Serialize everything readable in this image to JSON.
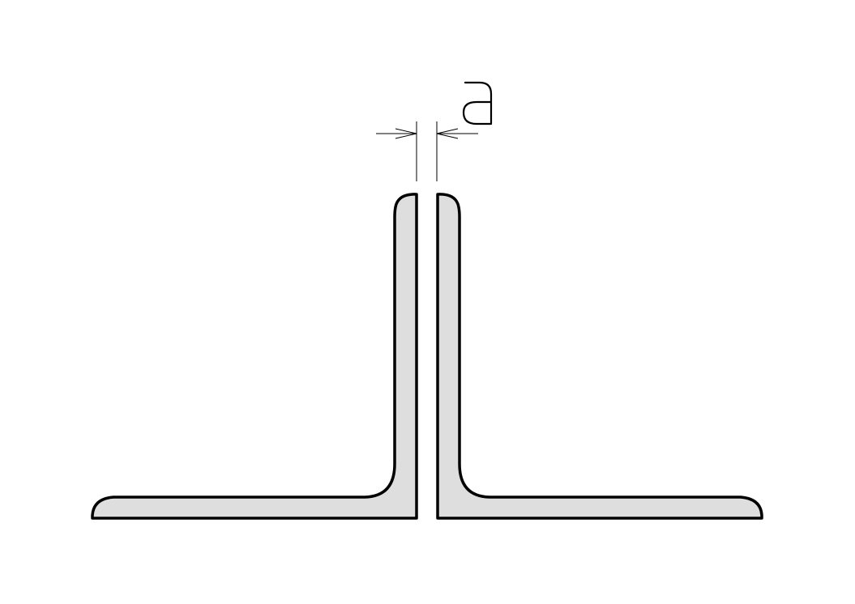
{
  "drawing": {
    "dimension_label": "a"
  },
  "colors": {
    "fill": "#dedede",
    "stroke": "#000000",
    "background": "#ffffff"
  }
}
